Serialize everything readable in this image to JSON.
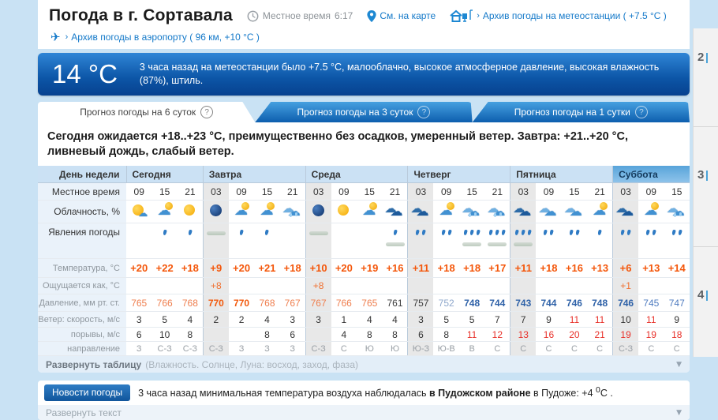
{
  "header": {
    "title": "Погода в г. Сортавала",
    "local_time_label": "Местное время",
    "local_time_value": "6:17",
    "map_link": "См. на карте",
    "station_link": "Архив погоды на метеостанции ( +7.5 °C )",
    "airport_link": "Архив погоды в аэропорту ( 96 км, +10 °C )"
  },
  "banner": {
    "temperature": "14 °C",
    "text": "3 часа назад на метеостанции было +7.5 °C, малооблачно, высокое атмосферное давление, высокая влажность (87%), штиль.",
    "background": "#0c55a6"
  },
  "tabs": [
    {
      "label": "Прогноз погоды на 6 суток",
      "active": true
    },
    {
      "label": "Прогноз погоды на 3 суток",
      "active": false
    },
    {
      "label": "Прогноз погоды на 1 сутки",
      "active": false
    }
  ],
  "summary": "Сегодня ожидается +18..+23 °C, преимущественно без осадков, умеренный ветер. Завтра: +21..+20 °C, ливневый дождь, слабый ветер.",
  "table": {
    "corner_label": "День недели",
    "days": [
      {
        "name": "Сегодня",
        "span": 3,
        "weekend": false
      },
      {
        "name": "Завтра",
        "span": 4,
        "weekend": false
      },
      {
        "name": "Среда",
        "span": 4,
        "weekend": false
      },
      {
        "name": "Четверг",
        "span": 4,
        "weekend": false
      },
      {
        "name": "Пятница",
        "span": 4,
        "weekend": false
      },
      {
        "name": "Суббота",
        "span": 3,
        "weekend": true
      }
    ],
    "night_cols": [
      3,
      7,
      11,
      15,
      19
    ],
    "day_starts": [
      3,
      7,
      11,
      15,
      19
    ],
    "rows": [
      {
        "id": "time",
        "label": "Местное время",
        "type": "text",
        "cls": "r-time",
        "values": [
          "09",
          "15",
          "21",
          "03",
          "09",
          "15",
          "21",
          "03",
          "09",
          "15",
          "21",
          "03",
          "09",
          "15",
          "21",
          "03",
          "09",
          "15",
          "21",
          "03",
          "09",
          "15"
        ]
      },
      {
        "id": "cloudiness",
        "label": "Облачность, %",
        "type": "icon",
        "cls": "r-cloud",
        "values": [
          "sun-cloud",
          "cloud-sun",
          "sun",
          "night",
          "cloud-sun",
          "cloud-sun",
          "cloud-rain",
          "night",
          "sun",
          "cloud-sun",
          "dark-cloud",
          "dark-cloud",
          "cloud-sun",
          "cloud-rain",
          "cloud-rain",
          "dark-cloud",
          "cloud",
          "cloud",
          "cloud-sun",
          "dark-cloud",
          "cloud-sun",
          "cloud-rain"
        ]
      },
      {
        "id": "phenomena",
        "label": "Явления погоды",
        "type": "phen",
        "cls": "r-phen",
        "drops": [
          0,
          1,
          1,
          0,
          1,
          1,
          0,
          0,
          0,
          0,
          1,
          2,
          2,
          3,
          3,
          3,
          2,
          2,
          1,
          2,
          2,
          2
        ],
        "mist": [
          false,
          false,
          false,
          true,
          false,
          false,
          false,
          true,
          false,
          false,
          true,
          false,
          false,
          true,
          true,
          true,
          false,
          false,
          false,
          false,
          false,
          false
        ]
      },
      {
        "id": "temperature",
        "label": "Температура, °C",
        "type": "text",
        "cls": "r-temp",
        "values": [
          "+20",
          "+22",
          "+18",
          "+9",
          "+20",
          "+21",
          "+18",
          "+10",
          "+20",
          "+19",
          "+16",
          "+11",
          "+18",
          "+18",
          "+17",
          "+11",
          "+18",
          "+16",
          "+13",
          "+6",
          "+13",
          "+14"
        ]
      },
      {
        "id": "feels_like",
        "label": "Ощущается как, °C",
        "type": "text",
        "cls": "r-feels",
        "values": [
          "",
          "",
          "",
          "+8",
          "",
          "",
          "",
          "+8",
          "",
          "",
          "",
          "",
          "",
          "",
          "",
          "",
          "",
          "",
          "",
          "+1",
          "",
          ""
        ]
      },
      {
        "id": "pressure",
        "label": "Давление, мм рт. ст.",
        "type": "text",
        "cls": "r-press",
        "values": [
          "765",
          "766",
          "768",
          "770",
          "770",
          "768",
          "767",
          "767",
          "766",
          "765",
          "761",
          "757",
          "752",
          "748",
          "744",
          "743",
          "744",
          "746",
          "748",
          "746",
          "745",
          "747"
        ],
        "styles": [
          "o",
          "o",
          "o",
          "ob",
          "ob",
          "o",
          "o",
          "o",
          "o",
          "o",
          "k",
          "k",
          "mb",
          "bb",
          "bb",
          "bb",
          "bb",
          "bb",
          "bb",
          "bb",
          "b",
          "b"
        ]
      },
      {
        "id": "wind_speed",
        "label": "Ветер: скорость, м/с",
        "type": "text",
        "cls": "r-wind",
        "values": [
          "3",
          "5",
          "4",
          "2",
          "2",
          "4",
          "3",
          "3",
          "1",
          "4",
          "4",
          "3",
          "5",
          "5",
          "7",
          "7",
          "9",
          "11",
          "11",
          "10",
          "11",
          "9"
        ],
        "styles": [
          "",
          "",
          "",
          "",
          "",
          "",
          "",
          "",
          "",
          "",
          "",
          "",
          "",
          "",
          "",
          "",
          "",
          "r",
          "r",
          "",
          "r",
          ""
        ]
      },
      {
        "id": "wind_gusts",
        "label": "порывы, м/с",
        "type": "text",
        "cls": "r-wind r-gust",
        "values": [
          "6",
          "10",
          "8",
          "",
          "",
          "8",
          "6",
          "",
          "4",
          "8",
          "8",
          "6",
          "8",
          "11",
          "12",
          "13",
          "16",
          "20",
          "21",
          "19",
          "19",
          "18"
        ],
        "styles": [
          "",
          "",
          "",
          "",
          "",
          "",
          "",
          "",
          "",
          "",
          "",
          "",
          "",
          "r",
          "r",
          "r",
          "r",
          "r",
          "r",
          "r",
          "r",
          "r"
        ]
      },
      {
        "id": "wind_direction",
        "label": "направление",
        "type": "text",
        "cls": "r-dir",
        "values": [
          "З",
          "С-З",
          "С-З",
          "С-З",
          "З",
          "З",
          "З",
          "С-З",
          "С",
          "Ю",
          "Ю",
          "Ю-З",
          "Ю-В",
          "В",
          "С",
          "С",
          "С",
          "С",
          "С",
          "С-З",
          "С",
          "С"
        ]
      }
    ],
    "expand": {
      "bold": "Развернуть таблицу",
      "note": "(Влажность. Солнце, Луна: восход, заход, фаза)"
    }
  },
  "news": {
    "button": "Новости погоды",
    "text_before": "3 часа назад минимальная температура воздуха наблюдалась ",
    "text_bold": "в Пудожском районе",
    "text_mid": " в Пудоже: +4 ",
    "sup": "0",
    "text_end": "C .",
    "expand_label": "Развернуть текст"
  },
  "sidebar": {
    "items": [
      "2",
      "3",
      "4"
    ]
  },
  "colors": {
    "accent_blue": "#1479c9",
    "temp_orange": "#f4560a",
    "alert_red": "#e8312a",
    "weekend_header": "#58a4da",
    "page_background": "#c9e2f4"
  }
}
